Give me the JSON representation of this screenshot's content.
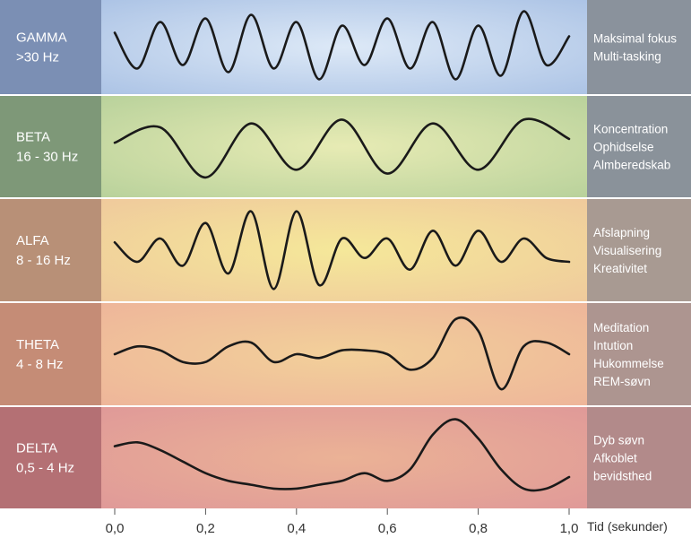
{
  "chart_data": {
    "type": "line",
    "xlabel": "Tid (sekunder)",
    "xlim": [
      0.0,
      1.0
    ],
    "x_ticks": [
      "0,0",
      "0,2",
      "0,4",
      "0,6",
      "0,8",
      "1,0"
    ],
    "bands": [
      {
        "name": "GAMMA",
        "range": ">30 Hz",
        "effects": [
          "Maksimal fokus",
          "Multi-tasking"
        ],
        "colors": {
          "label_bg": "#7b8fb4",
          "plot_center": "#dde9f7",
          "plot_edge": "#a9c1e4",
          "effect_bg": "#8a929c"
        },
        "x": [
          0.0,
          0.05,
          0.1,
          0.15,
          0.2,
          0.25,
          0.3,
          0.35,
          0.4,
          0.45,
          0.5,
          0.55,
          0.6,
          0.65,
          0.7,
          0.75,
          0.8,
          0.85,
          0.9,
          0.95,
          1.0
        ],
        "y": [
          0.4,
          -0.6,
          0.7,
          -0.5,
          0.8,
          -0.7,
          0.9,
          -0.6,
          0.7,
          -0.9,
          0.6,
          -0.5,
          0.8,
          -0.6,
          0.7,
          -0.9,
          0.6,
          -0.8,
          1.0,
          -0.5,
          0.3
        ]
      },
      {
        "name": "BETA",
        "range": "16 - 30 Hz",
        "effects": [
          "Koncentration",
          "Ophidselse",
          "Almberedskab"
        ],
        "colors": {
          "label_bg": "#7e9878",
          "plot_center": "#e7ebb4",
          "plot_edge": "#b6d09a",
          "effect_bg": "#8a929a"
        },
        "x": [
          0.0,
          0.1,
          0.2,
          0.3,
          0.4,
          0.5,
          0.6,
          0.7,
          0.8,
          0.9,
          1.0
        ],
        "y": [
          0.1,
          0.5,
          -0.8,
          0.6,
          -0.6,
          0.7,
          -0.7,
          0.6,
          -0.6,
          0.7,
          0.2
        ]
      },
      {
        "name": "ALFA",
        "range": "8 - 16 Hz",
        "effects": [
          "Afslapning",
          "Visualisering",
          "Kreativitet"
        ],
        "colors": {
          "label_bg": "#b89077",
          "plot_center": "#f5e89a",
          "plot_edge": "#efc89c",
          "effect_bg": "#a89a92"
        },
        "x": [
          0.0,
          0.05,
          0.1,
          0.15,
          0.2,
          0.25,
          0.3,
          0.35,
          0.4,
          0.45,
          0.5,
          0.55,
          0.6,
          0.65,
          0.7,
          0.75,
          0.8,
          0.85,
          0.9,
          0.95,
          1.0
        ],
        "y": [
          0.2,
          -0.3,
          0.3,
          -0.4,
          0.7,
          -0.6,
          1.0,
          -1.0,
          1.0,
          -0.9,
          0.3,
          -0.2,
          0.3,
          -0.5,
          0.5,
          -0.4,
          0.5,
          -0.3,
          0.3,
          -0.2,
          -0.3
        ]
      },
      {
        "name": "THETA",
        "range": "4 - 8 Hz",
        "effects": [
          "Meditation",
          "Intution",
          "Hukommelse",
          "REM-søvn"
        ],
        "colors": {
          "label_bg": "#c58c76",
          "plot_center": "#f2d09a",
          "plot_edge": "#eeb49a",
          "effect_bg": "#ad9590"
        },
        "x": [
          0.0,
          0.05,
          0.1,
          0.15,
          0.2,
          0.25,
          0.3,
          0.35,
          0.4,
          0.45,
          0.5,
          0.55,
          0.6,
          0.65,
          0.7,
          0.75,
          0.8,
          0.85,
          0.9,
          0.95,
          1.0
        ],
        "y": [
          0.0,
          0.2,
          0.1,
          -0.2,
          -0.2,
          0.2,
          0.3,
          -0.2,
          0.0,
          -0.1,
          0.1,
          0.1,
          0.0,
          -0.4,
          -0.1,
          0.9,
          0.6,
          -0.9,
          0.2,
          0.3,
          0.0
        ]
      },
      {
        "name": "DELTA",
        "range": "0,5 - 4 Hz",
        "effects": [
          "Dyb søvn",
          "Afkoblet",
          "bevidsthed"
        ],
        "colors": {
          "label_bg": "#b47074",
          "plot_center": "#ebb296",
          "plot_edge": "#df9898",
          "effect_bg": "#b28a8a"
        },
        "x": [
          0.0,
          0.05,
          0.1,
          0.15,
          0.2,
          0.25,
          0.3,
          0.35,
          0.4,
          0.45,
          0.5,
          0.55,
          0.6,
          0.65,
          0.7,
          0.75,
          0.8,
          0.85,
          0.9,
          0.95,
          1.0
        ],
        "y": [
          0.3,
          0.4,
          0.2,
          -0.1,
          -0.4,
          -0.6,
          -0.7,
          -0.8,
          -0.8,
          -0.7,
          -0.6,
          -0.4,
          -0.6,
          -0.3,
          0.6,
          1.0,
          0.5,
          -0.3,
          -0.8,
          -0.8,
          -0.5
        ]
      }
    ]
  }
}
